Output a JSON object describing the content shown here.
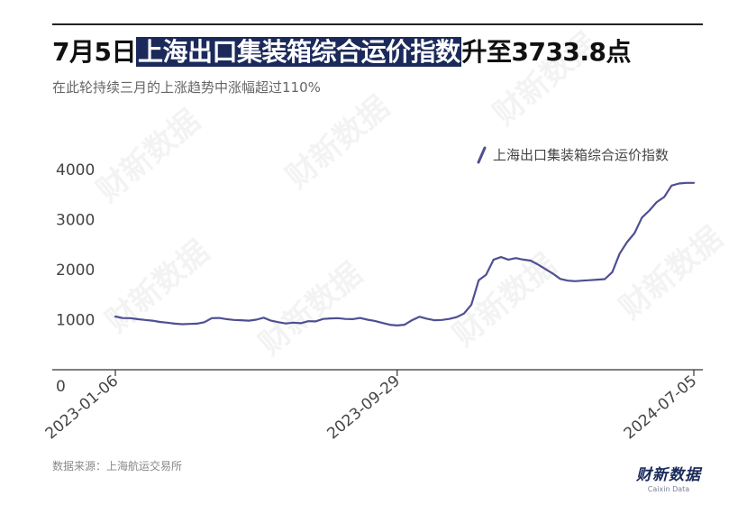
{
  "header": {
    "title_prefix": "7月5日",
    "title_highlight": "上海出口集装箱综合运价指数",
    "title_suffix": "升至3733.8点",
    "subtitle": "在此轮持续三月的上涨趋势中涨幅超过110%"
  },
  "footer": {
    "source": "数据来源：上海航运交易所",
    "brand": "财新数据",
    "brand_sub": "Caixin Data"
  },
  "watermark": "财新数据",
  "chart_data": {
    "type": "line",
    "title": "7月5日上海出口集装箱综合运价指数升至3733.8点",
    "subtitle": "在此轮持续三月的上涨趋势中涨幅超过110%",
    "xlabel": "",
    "ylabel": "",
    "ylim": [
      0,
      4000
    ],
    "yticks": [
      0,
      1000,
      2000,
      3000,
      4000
    ],
    "x_tick_labels": [
      "2023-01-06",
      "2023-09-29",
      "2024-07-05"
    ],
    "grid": false,
    "legend_position": "top-right",
    "series": [
      {
        "name": "上海出口集装箱综合运价指数",
        "color": "#4e4f92",
        "x": [
          "2023-01-06",
          "2023-01-13",
          "2023-01-20",
          "2023-01-27",
          "2023-02-03",
          "2023-02-10",
          "2023-02-17",
          "2023-02-24",
          "2023-03-03",
          "2023-03-10",
          "2023-03-17",
          "2023-03-24",
          "2023-03-31",
          "2023-04-07",
          "2023-04-14",
          "2023-04-21",
          "2023-04-28",
          "2023-05-05",
          "2023-05-12",
          "2023-05-19",
          "2023-05-26",
          "2023-06-02",
          "2023-06-09",
          "2023-06-16",
          "2023-06-23",
          "2023-06-30",
          "2023-07-07",
          "2023-07-14",
          "2023-07-21",
          "2023-07-28",
          "2023-08-04",
          "2023-08-11",
          "2023-08-18",
          "2023-08-25",
          "2023-09-01",
          "2023-09-08",
          "2023-09-15",
          "2023-09-22",
          "2023-09-29",
          "2023-10-06",
          "2023-10-13",
          "2023-10-20",
          "2023-10-27",
          "2023-11-03",
          "2023-11-10",
          "2023-11-17",
          "2023-11-24",
          "2023-12-01",
          "2023-12-08",
          "2023-12-15",
          "2023-12-22",
          "2023-12-29",
          "2024-01-05",
          "2024-01-12",
          "2024-01-19",
          "2024-01-26",
          "2024-02-02",
          "2024-02-09",
          "2024-02-16",
          "2024-02-23",
          "2024-03-01",
          "2024-03-08",
          "2024-03-15",
          "2024-03-22",
          "2024-03-29",
          "2024-04-05",
          "2024-04-12",
          "2024-04-19",
          "2024-04-26",
          "2024-05-03",
          "2024-05-10",
          "2024-05-17",
          "2024-05-24",
          "2024-05-31",
          "2024-06-07",
          "2024-06-14",
          "2024-06-21",
          "2024-06-28",
          "2024-07-05"
        ],
        "values": [
          1063,
          1032,
          1030,
          1010,
          995,
          980,
          955,
          940,
          920,
          910,
          915,
          920,
          950,
          1030,
          1035,
          1010,
          995,
          990,
          980,
          1000,
          1040,
          980,
          950,
          925,
          940,
          930,
          970,
          965,
          1015,
          1025,
          1030,
          1015,
          1010,
          1035,
          1000,
          975,
          935,
          900,
          885,
          900,
          990,
          1060,
          1020,
          990,
          995,
          1015,
          1050,
          1120,
          1300,
          1790,
          1900,
          2200,
          2250,
          2200,
          2230,
          2200,
          2180,
          2100,
          2010,
          1920,
          1815,
          1780,
          1770,
          1780,
          1790,
          1800,
          1810,
          1950,
          2320,
          2550,
          2730,
          3040,
          3180,
          3350,
          3450,
          3680,
          3720,
          3733.8,
          3733.8
        ]
      }
    ]
  }
}
